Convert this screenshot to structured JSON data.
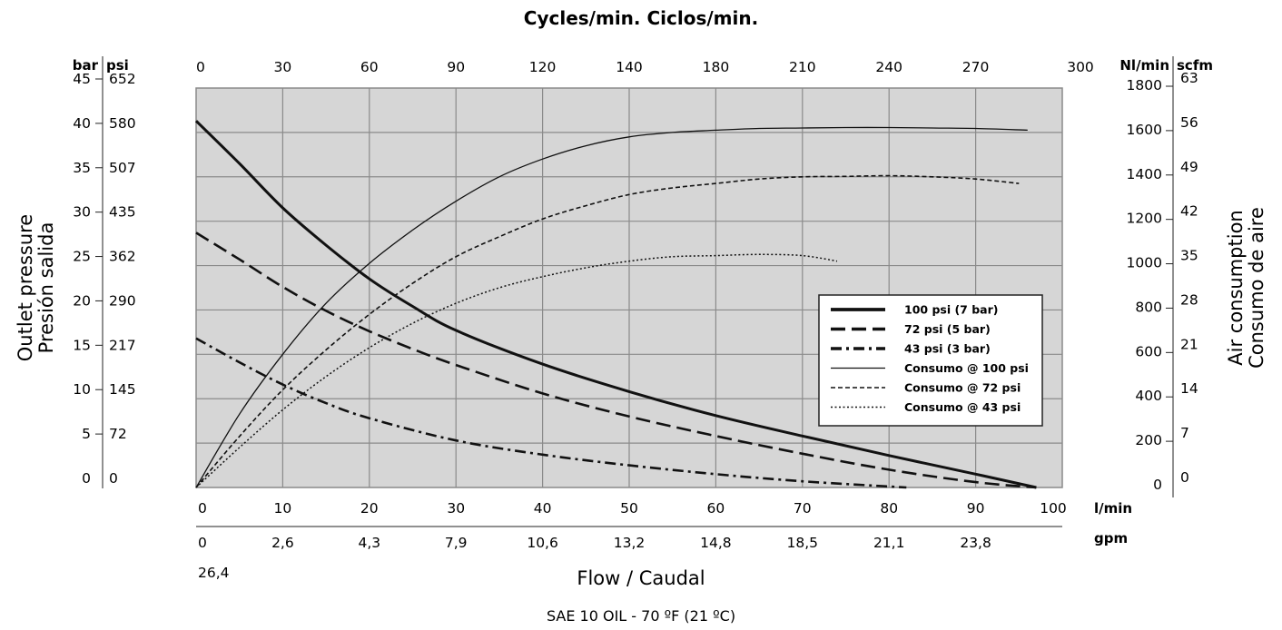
{
  "chart_data": {
    "type": "line",
    "title": "Cycles/min. Ciclos/min.",
    "top_axis": {
      "unit": "",
      "ticks": [
        "0",
        "30",
        "60",
        "90",
        "120",
        "140",
        "180",
        "210",
        "240",
        "270",
        "300"
      ]
    },
    "x_axis": {
      "label": "Flow / Caudal",
      "unit": "l/min",
      "range": [
        0,
        100
      ],
      "ticks": [
        "0",
        "10",
        "20",
        "30",
        "40",
        "50",
        "60",
        "70",
        "80",
        "90",
        "100"
      ],
      "secondary_unit": "gpm",
      "secondary_ticks": [
        "0",
        "2,6",
        "4,3",
        "7,9",
        "10,6",
        "13,2",
        "14,8",
        "18,5",
        "21,1",
        "23,8"
      ],
      "secondary_extra": "26,4"
    },
    "left_axis": {
      "label_line1": "Outlet pressure",
      "label_line2": "Presión salida",
      "unit_bar": "bar",
      "unit_psi": "psi",
      "range_bar": [
        0,
        45
      ],
      "bar_ticks": [
        "0",
        "5",
        "10",
        "15",
        "20",
        "25",
        "30",
        "35",
        "40",
        "45"
      ],
      "psi_ticks": [
        "0",
        "72",
        "145",
        "217",
        "290",
        "362",
        "435",
        "507",
        "580",
        "652"
      ]
    },
    "right_axis": {
      "label_line1": "Air consumption",
      "label_line2": "Consumo de aire",
      "unit_nl": "Nl/min",
      "unit_scfm": "scfm",
      "range_nl": [
        0,
        1800
      ],
      "nl_ticks": [
        "0",
        "200",
        "400",
        "600",
        "800",
        "1000",
        "1200",
        "1400",
        "1600",
        "1800"
      ],
      "scfm_ticks": [
        "0",
        "7",
        "14",
        "21",
        "28",
        "35",
        "42",
        "49",
        "56",
        "63"
      ]
    },
    "grid": true,
    "legend_position": "center-right",
    "series": [
      {
        "name": "100 psi (7 bar)",
        "axis": "pressure_bar",
        "style": "thick-solid",
        "x": [
          0,
          5,
          10,
          15,
          20,
          25,
          30,
          40,
          50,
          60,
          70,
          80,
          90,
          97
        ],
        "y": [
          41.3,
          36.5,
          31.5,
          27.3,
          23.5,
          20.4,
          17.7,
          13.9,
          10.8,
          8.1,
          5.8,
          3.6,
          1.5,
          0
        ]
      },
      {
        "name": "72 psi (5 bar)",
        "axis": "pressure_bar",
        "style": "thick-dashed",
        "x": [
          0,
          5,
          10,
          15,
          20,
          25,
          30,
          40,
          50,
          60,
          70,
          80,
          90,
          97
        ],
        "y": [
          28.7,
          25.7,
          22.6,
          19.9,
          17.6,
          15.6,
          13.8,
          10.6,
          8.0,
          5.8,
          3.8,
          2.0,
          0.6,
          0
        ]
      },
      {
        "name": "43 psi (3 bar)",
        "axis": "pressure_bar",
        "style": "thick-dashdot",
        "x": [
          0,
          5,
          10,
          15,
          20,
          30,
          40,
          50,
          60,
          70,
          82
        ],
        "y": [
          16.8,
          14.1,
          11.6,
          9.5,
          7.8,
          5.3,
          3.7,
          2.5,
          1.5,
          0.7,
          0
        ]
      },
      {
        "name": "Consumo @ 100 psi",
        "axis": "air_nl",
        "style": "thin-solid",
        "x": [
          0,
          5,
          10,
          15,
          20,
          25,
          30,
          35,
          40,
          45,
          50,
          55,
          60,
          65,
          70,
          75,
          80,
          85,
          90,
          96
        ],
        "y": [
          0,
          330,
          600,
          830,
          1010,
          1160,
          1290,
          1400,
          1480,
          1540,
          1580,
          1600,
          1610,
          1618,
          1620,
          1622,
          1622,
          1620,
          1618,
          1610
        ]
      },
      {
        "name": "Consumo @ 72 psi",
        "axis": "air_nl",
        "style": "thin-dashed",
        "x": [
          0,
          5,
          10,
          15,
          20,
          25,
          30,
          35,
          40,
          45,
          50,
          55,
          60,
          65,
          70,
          75,
          80,
          85,
          90,
          95
        ],
        "y": [
          0,
          230,
          440,
          620,
          780,
          920,
          1040,
          1130,
          1210,
          1270,
          1320,
          1350,
          1370,
          1390,
          1400,
          1402,
          1405,
          1400,
          1390,
          1370
        ]
      },
      {
        "name": "Consumo @ 43 psi",
        "axis": "air_nl",
        "style": "thin-dotted",
        "x": [
          0,
          5,
          10,
          15,
          20,
          25,
          30,
          35,
          40,
          45,
          50,
          55,
          60,
          65,
          70,
          74
        ],
        "y": [
          0,
          180,
          350,
          500,
          630,
          740,
          830,
          900,
          950,
          990,
          1020,
          1040,
          1045,
          1050,
          1045,
          1020
        ]
      }
    ],
    "caption": "SAE 10 OIL - 70 ºF (21 ºC)"
  }
}
